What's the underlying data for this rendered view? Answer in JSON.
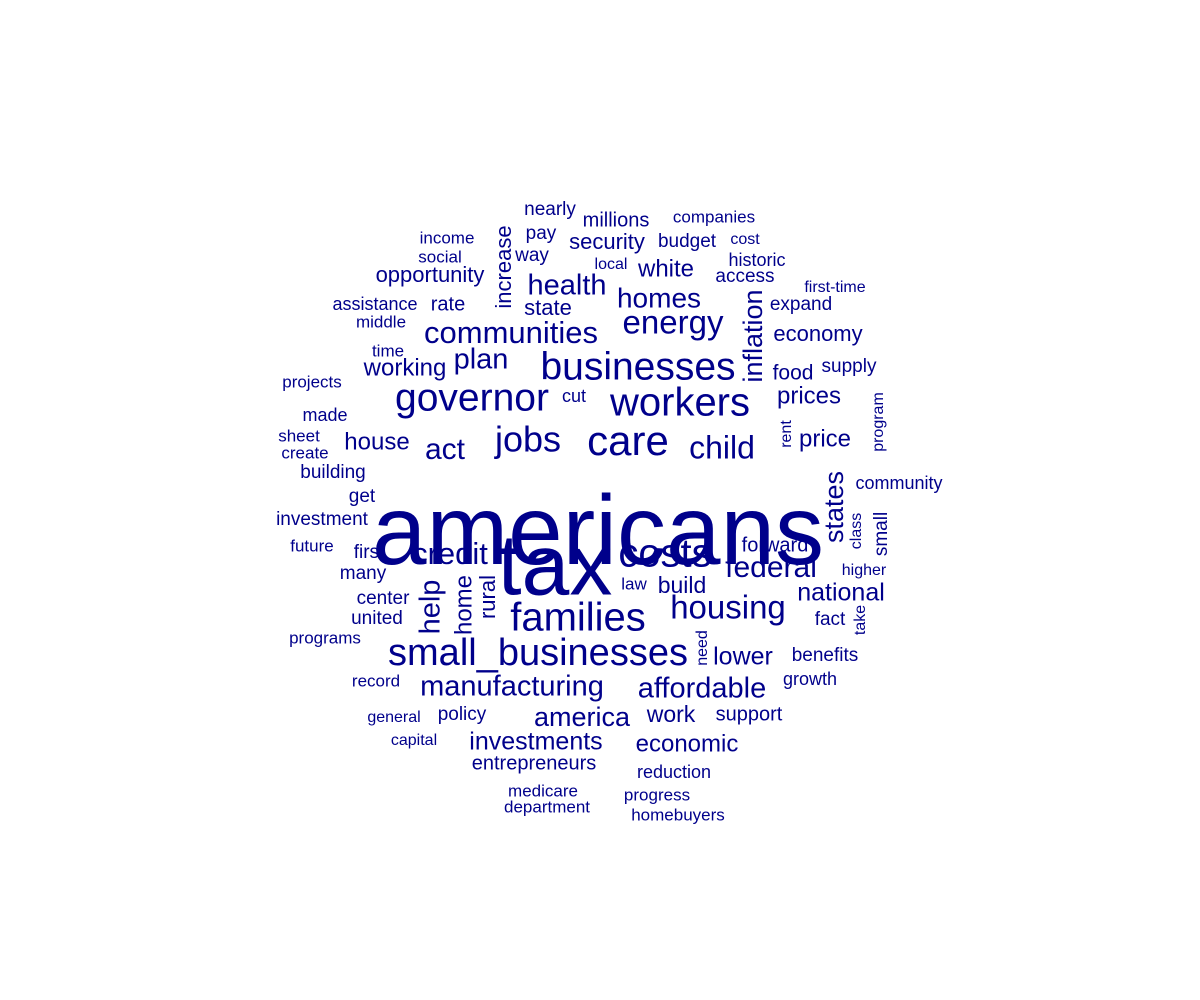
{
  "color": "#00008b",
  "words": [
    "americans",
    "tax",
    "small_businesses",
    "families",
    "businesses",
    "workers",
    "care",
    "governor",
    "costs",
    "jobs",
    "housing",
    "communities",
    "energy",
    "federal",
    "child",
    "credit",
    "manufacturing",
    "affordable",
    "health",
    "homes",
    "plan",
    "act",
    "states",
    "inflation",
    "help",
    "america",
    "investments",
    "economic",
    "national",
    "lower",
    "house",
    "working",
    "white",
    "price",
    "prices",
    "opportunity",
    "security",
    "millions",
    "economy",
    "home",
    "rural",
    "increase",
    "state",
    "build",
    "work",
    "support",
    "entrepreneurs",
    "benefits",
    "forward",
    "expand",
    "access",
    "food",
    "supply",
    "rate",
    "budget",
    "nearly",
    "pay",
    "way",
    "companies",
    "historic",
    "first-time",
    "income",
    "social",
    "assistance",
    "middle",
    "time",
    "projects",
    "made",
    "sheet",
    "create",
    "building",
    "get",
    "investment",
    "future",
    "first",
    "many",
    "center",
    "united",
    "programs",
    "record",
    "general",
    "policy",
    "capital",
    "medicare",
    "department",
    "progress",
    "homebuyers",
    "reduction",
    "growth",
    "fact",
    "take",
    "class",
    "small",
    "higher",
    "community",
    "program",
    "rent",
    "cut",
    "law",
    "need",
    "local",
    "cost"
  ]
}
